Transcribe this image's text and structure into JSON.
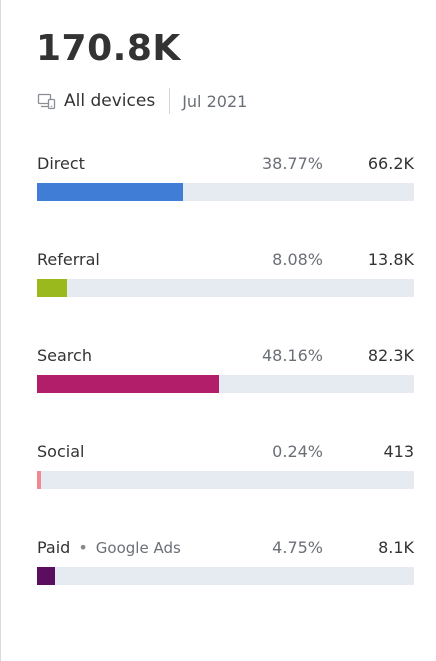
{
  "summary": {
    "total": "170.8K"
  },
  "filters": {
    "device": "All devices",
    "period": "Jul 2021"
  },
  "channels": [
    {
      "label": "Direct",
      "sub": "",
      "percent": "38.77%",
      "value": "66.2K",
      "share": 0.3877,
      "color": "#3f7dd6"
    },
    {
      "label": "Referral",
      "sub": "",
      "percent": "8.08%",
      "value": "13.8K",
      "share": 0.0808,
      "color": "#9ab91c"
    },
    {
      "label": "Search",
      "sub": "",
      "percent": "48.16%",
      "value": "82.3K",
      "share": 0.4816,
      "color": "#b31e6a"
    },
    {
      "label": "Social",
      "sub": "",
      "percent": "0.24%",
      "value": "413",
      "share": 0.0024,
      "color": "#f08a8e"
    },
    {
      "label": "Paid",
      "sub": "Google Ads",
      "percent": "4.75%",
      "value": "8.1K",
      "share": 0.0475,
      "color": "#5b0e60"
    }
  ],
  "icons": {
    "device": "devices-icon"
  }
}
